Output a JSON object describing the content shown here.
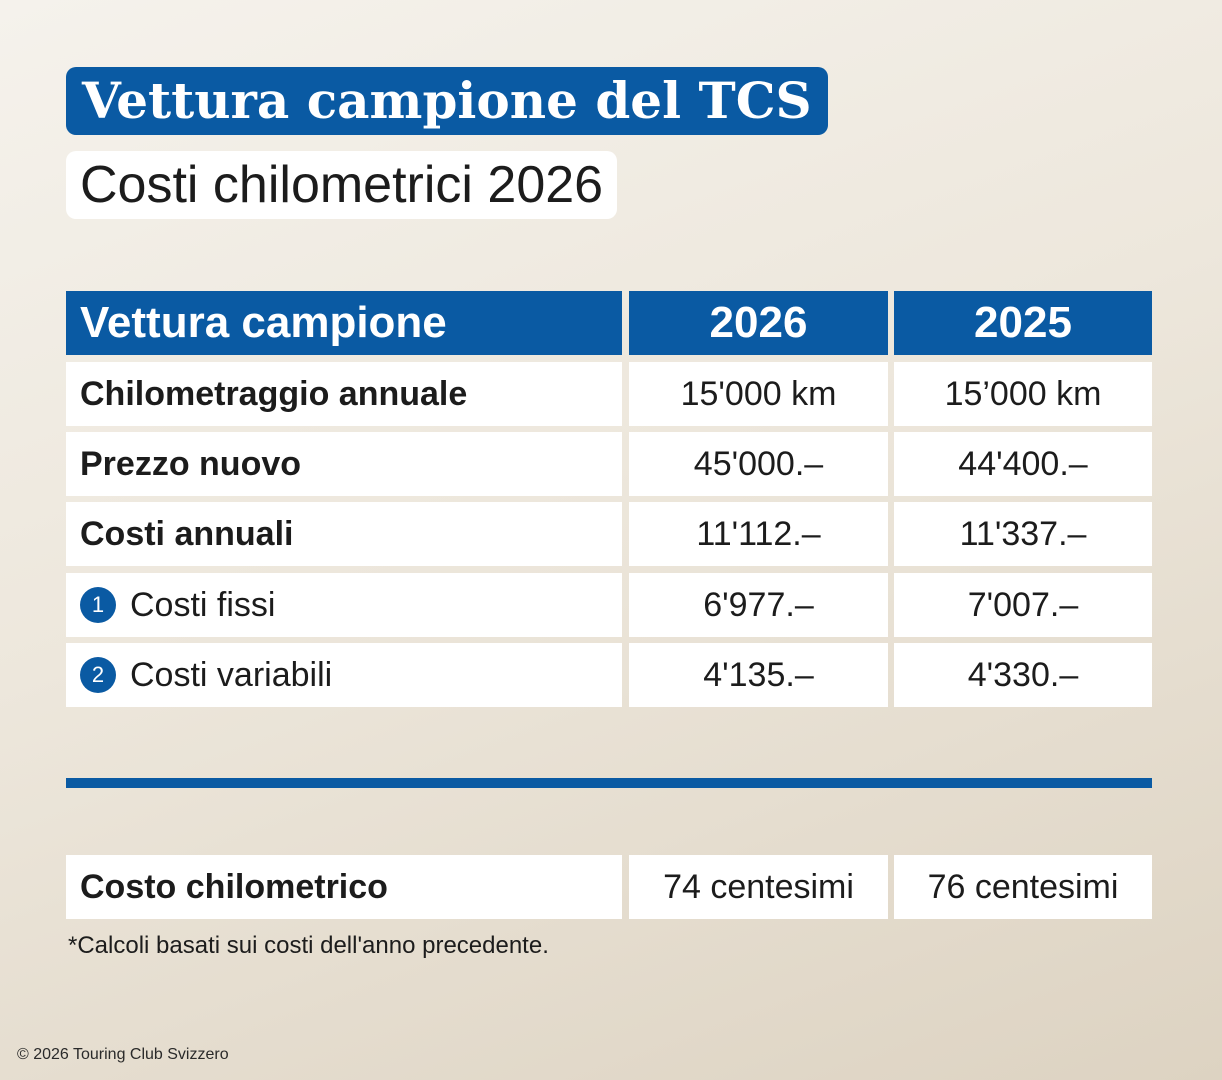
{
  "title": "Vettura campione del TCS",
  "subtitle": "Costi chilometrici 2026",
  "table": {
    "headers": [
      "Vettura campione",
      "2026",
      "2025"
    ],
    "rows": [
      {
        "label": "Chilometraggio annuale",
        "v2026": "15'000 km",
        "v2025": "15’000 km",
        "bold": true
      },
      {
        "label": "Prezzo nuovo",
        "v2026": "45'000.–",
        "v2025": "44'400.–",
        "bold": true
      },
      {
        "label": "Costi annuali",
        "v2026": "11'112.–",
        "v2025": "11'337.–",
        "bold": true
      },
      {
        "badge": "1",
        "label": "Costi fissi",
        "v2026": "6'977.–",
        "v2025": "7'007.–",
        "bold": false
      },
      {
        "badge": "2",
        "label": "Costi variabili",
        "v2026": "4'135.–",
        "v2025": "4'330.–",
        "bold": false
      }
    ]
  },
  "summary": {
    "label": "Costo chilometrico",
    "v2026": "74 centesimi",
    "v2025": "76 centesimi"
  },
  "footnote": "*Calcoli basati sui costi dell'anno precedente.",
  "copyright": "© 2026 Touring Club Svizzero",
  "colors": {
    "accent": "#0a5aa3",
    "background": "#f0ebe2",
    "cell": "#ffffff"
  }
}
